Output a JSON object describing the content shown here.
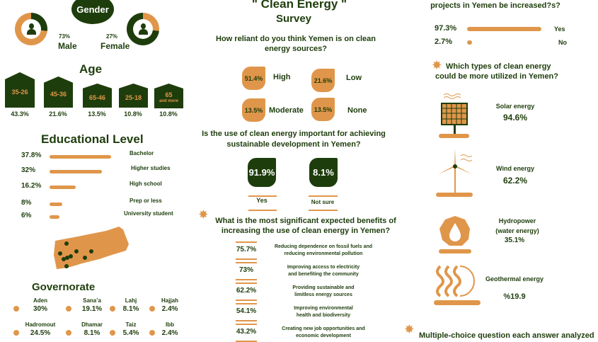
{
  "gender": {
    "title": "Gender",
    "male": {
      "pct": "73%",
      "label": "Male",
      "value": 73
    },
    "female": {
      "pct": "27%",
      "label": "Female",
      "value": 27
    }
  },
  "age": {
    "title": "Age",
    "groups": [
      {
        "range": "35-26",
        "pct": "43.3%"
      },
      {
        "range": "45-36",
        "pct": "21.6%"
      },
      {
        "range": "65-46",
        "pct": "13.5%"
      },
      {
        "range": "25-18",
        "pct": "10.8%"
      },
      {
        "range": "65",
        "sub": "and more",
        "pct": "10.8%"
      }
    ]
  },
  "education": {
    "title": "Educational Level",
    "rows": [
      {
        "pct": "37.8%",
        "label": "Bachelor",
        "value": 37.8
      },
      {
        "pct": "32%",
        "label": "Higher studies",
        "value": 32
      },
      {
        "pct": "16.2%",
        "label": "High school",
        "value": 16.2
      },
      {
        "pct": "8%",
        "label": "Prep or less",
        "value": 8
      },
      {
        "pct": "6%",
        "label": "University student",
        "value": 6
      }
    ]
  },
  "governorate": {
    "title": "Governorate",
    "items": [
      {
        "name": "Aden",
        "pct": "30%"
      },
      {
        "name": "Sana’a",
        "pct": "19.1%"
      },
      {
        "name": "Lahj",
        "pct": "8.1%"
      },
      {
        "name": "Hajjah",
        "pct": "2.4%"
      },
      {
        "name": "Hadromout",
        "pct": "24.5%"
      },
      {
        "name": "Dhamar",
        "pct": "8.1%"
      },
      {
        "name": "Taiz",
        "pct": "5.4%"
      },
      {
        "name": "Ibb",
        "pct": "2.4%"
      }
    ]
  },
  "survey": {
    "title1": "\" Clean Energy \"",
    "title2": "Survey"
  },
  "q1": {
    "line1": "How reliant do you think Yemen is on clean",
    "line2": "energy sources?",
    "answers": [
      {
        "pct": "51.4%",
        "label": "High"
      },
      {
        "pct": "21.6%",
        "label": "Low"
      },
      {
        "pct": "13.5%",
        "label": "Moderate"
      },
      {
        "pct": "13.5%",
        "label": "None"
      }
    ]
  },
  "q2": {
    "line1": "Is the use of clean energy important for achieving",
    "line2": "sustainable development in Yemen?",
    "yes": {
      "pct": "91.9%",
      "label": "Yes"
    },
    "notsure": {
      "pct": "8.1%",
      "label": "Not sure"
    }
  },
  "q3": {
    "line1": "What is the most significant expected benefits of",
    "line2": "increasing the use of clean energy in Yemen?",
    "items": [
      {
        "pct": "75.7%",
        "l1": "Reducing dependence on fossil fuels and",
        "l2": "reducing environmental pollution"
      },
      {
        "pct": "73%",
        "l1": "Improving access to electricity",
        "l2": "and benefiting the community"
      },
      {
        "pct": "62.2%",
        "l1": "Providing sustainable and",
        "l2": "limitless energy sources"
      },
      {
        "pct": "54.1%",
        "l1": "Improving environmental",
        "l2": "health and biodiversity"
      },
      {
        "pct": "43.2%",
        "l1": "Creating new job opportunities and",
        "l2": "economic development"
      }
    ]
  },
  "q4": {
    "line": "projects in Yemen be increased?s?",
    "yes": {
      "pct": "97.3%",
      "label": "Yes",
      "value": 97.3
    },
    "no": {
      "pct": "2.7%",
      "label": "No",
      "value": 2.7
    }
  },
  "q5": {
    "line1": "Which types of clean energy",
    "line2": "could be more utilized in Yemen?",
    "types": [
      {
        "label": "Solar energy",
        "pct": "94.6%"
      },
      {
        "label": "Wind energy",
        "pct": "62.2%"
      },
      {
        "label": "Hydropower",
        "label2": "(water energy)",
        "pct": "35.1%"
      },
      {
        "label": "Geothermal energy",
        "pct": "%19.9"
      }
    ]
  },
  "footnote": "Multiple-choice question each answer analyzed",
  "colors": {
    "green": "#1e3d0c",
    "orange": "#e0964a"
  }
}
